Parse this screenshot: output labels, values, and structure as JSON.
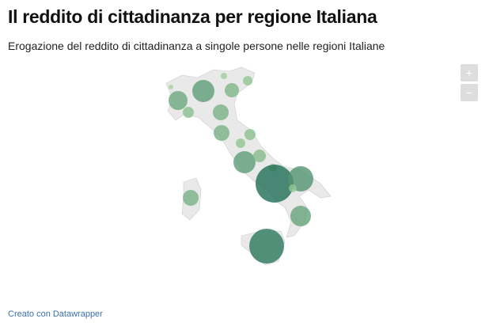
{
  "header": {
    "title": "Il reddito di cittadinanza per regione Italiana",
    "subtitle": "Erogazione del reddito di cittadinanza a singole persone nelle regioni Italiane"
  },
  "zoom": {
    "in": "+",
    "out": "−"
  },
  "bubbles": {
    "values": [
      9,
      144,
      196,
      16,
      81,
      36,
      49,
      100,
      100,
      49,
      36,
      196,
      64,
      25,
      576,
      256,
      25,
      169,
      484,
      100
    ]
  },
  "footer": {
    "credit": "Creato con Datawrapper"
  }
}
